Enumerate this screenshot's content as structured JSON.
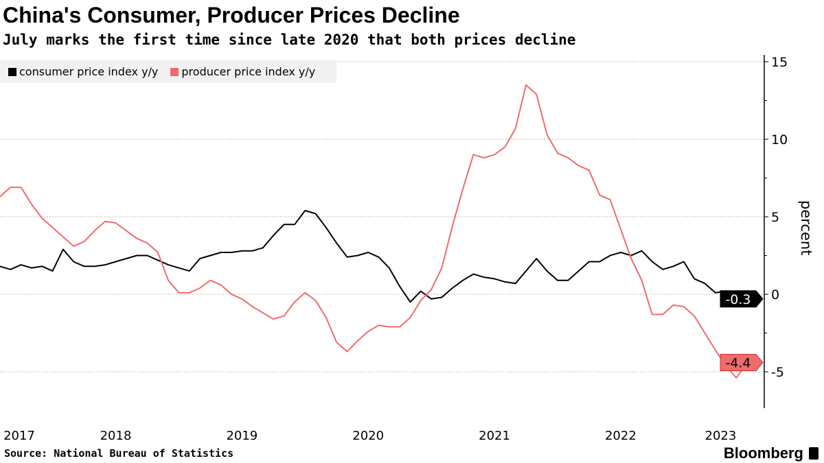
{
  "title": "China's Consumer, Producer Prices Decline",
  "subtitle": "July marks the first time since late 2020 that both prices decline",
  "source": "Source: National Bureau of Statistics",
  "logo": "Bloomberg",
  "chart_data": {
    "type": "line",
    "ylabel": "percent",
    "ylim": [
      -7.5,
      15
    ],
    "yticks": [
      15,
      10,
      5,
      0,
      -5
    ],
    "grid": true,
    "legend": "top-left",
    "x_start": "2017-08",
    "x_end": "2023-07",
    "frequency": "monthly",
    "xtick_labels": [
      "2017",
      "2018",
      "2019",
      "2020",
      "2021",
      "2022",
      "2023"
    ],
    "series": [
      {
        "name": "consumer price index y/y",
        "color": "#000000",
        "last_label": "-0.3",
        "values": [
          1.8,
          1.6,
          1.9,
          1.7,
          1.8,
          1.5,
          2.9,
          2.1,
          1.8,
          1.8,
          1.9,
          2.1,
          2.3,
          2.5,
          2.5,
          2.2,
          1.9,
          1.7,
          1.5,
          2.3,
          2.5,
          2.7,
          2.7,
          2.8,
          2.8,
          3.0,
          3.8,
          4.5,
          4.5,
          5.4,
          5.2,
          4.3,
          3.3,
          2.4,
          2.5,
          2.7,
          2.4,
          1.7,
          0.5,
          -0.5,
          0.2,
          -0.3,
          -0.2,
          0.4,
          0.9,
          1.3,
          1.1,
          1.0,
          0.8,
          0.7,
          1.5,
          2.3,
          1.5,
          0.9,
          0.9,
          1.5,
          2.1,
          2.1,
          2.5,
          2.7,
          2.5,
          2.8,
          2.1,
          1.6,
          1.8,
          2.1,
          1.0,
          0.7,
          0.1,
          0.2,
          0.0,
          -0.3
        ]
      },
      {
        "name": "producer price index y/y",
        "color": "#f06b6b",
        "last_label": "-4.4",
        "values": [
          6.3,
          6.9,
          6.9,
          5.8,
          4.9,
          4.3,
          3.7,
          3.1,
          3.4,
          4.1,
          4.7,
          4.6,
          4.1,
          3.6,
          3.3,
          2.7,
          0.9,
          0.1,
          0.1,
          0.4,
          0.9,
          0.6,
          0.0,
          -0.3,
          -0.8,
          -1.2,
          -1.6,
          -1.4,
          -0.5,
          0.1,
          -0.4,
          -1.5,
          -3.1,
          -3.7,
          -3.0,
          -2.4,
          -2.0,
          -2.1,
          -2.1,
          -1.5,
          -0.4,
          0.3,
          1.7,
          4.4,
          6.8,
          9.0,
          8.8,
          9.0,
          9.5,
          10.7,
          13.5,
          12.9,
          10.3,
          9.1,
          8.8,
          8.3,
          8.0,
          6.4,
          6.1,
          4.2,
          2.3,
          0.9,
          -1.3,
          -1.3,
          -0.7,
          -0.8,
          -1.4,
          -2.5,
          -3.6,
          -4.6,
          -5.4,
          -4.4
        ]
      }
    ]
  }
}
